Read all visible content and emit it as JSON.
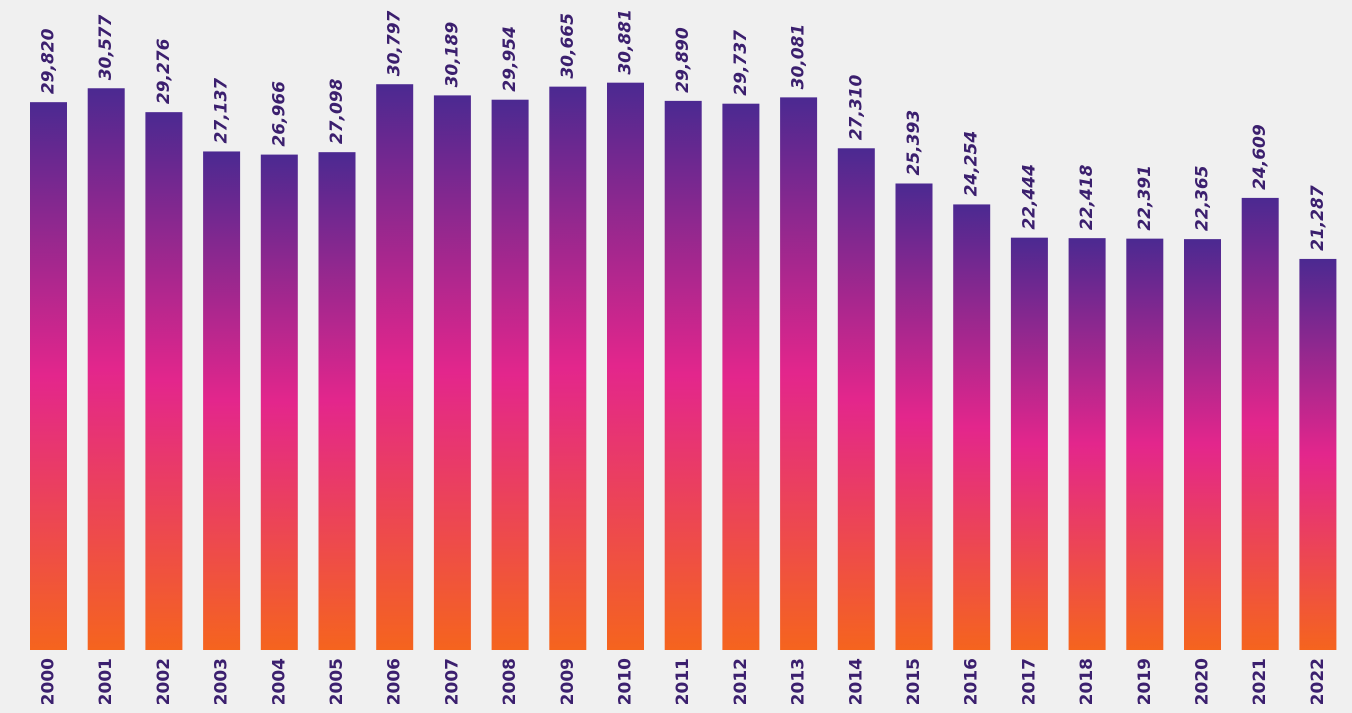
{
  "chart_data": {
    "type": "bar",
    "categories": [
      "2000",
      "2001",
      "2002",
      "2003",
      "2004",
      "2005",
      "2006",
      "2007",
      "2008",
      "2009",
      "2010",
      "2011",
      "2012",
      "2013",
      "2014",
      "2015",
      "2016",
      "2017",
      "2018",
      "2019",
      "2020",
      "2021",
      "2022"
    ],
    "values": [
      29820,
      30577,
      29276,
      27137,
      26966,
      27098,
      30797,
      30189,
      29954,
      30665,
      30881,
      29890,
      29737,
      30081,
      27310,
      25393,
      24254,
      22444,
      22418,
      22391,
      22365,
      24609,
      21287
    ],
    "value_labels": [
      "29,820",
      "30,577",
      "29,276",
      "27,137",
      "26,966",
      "27,098",
      "30,797",
      "30,189",
      "29,954",
      "30,665",
      "30,881",
      "29,890",
      "29,737",
      "30,081",
      "27,310",
      "25,393",
      "24,254",
      "22,444",
      "22,418",
      "22,391",
      "22,365",
      "24,609",
      "21,287"
    ],
    "colors": [
      "#4b2991",
      "#e3268c",
      "#f5641e"
    ],
    "ylim": [
      0,
      35000
    ]
  }
}
